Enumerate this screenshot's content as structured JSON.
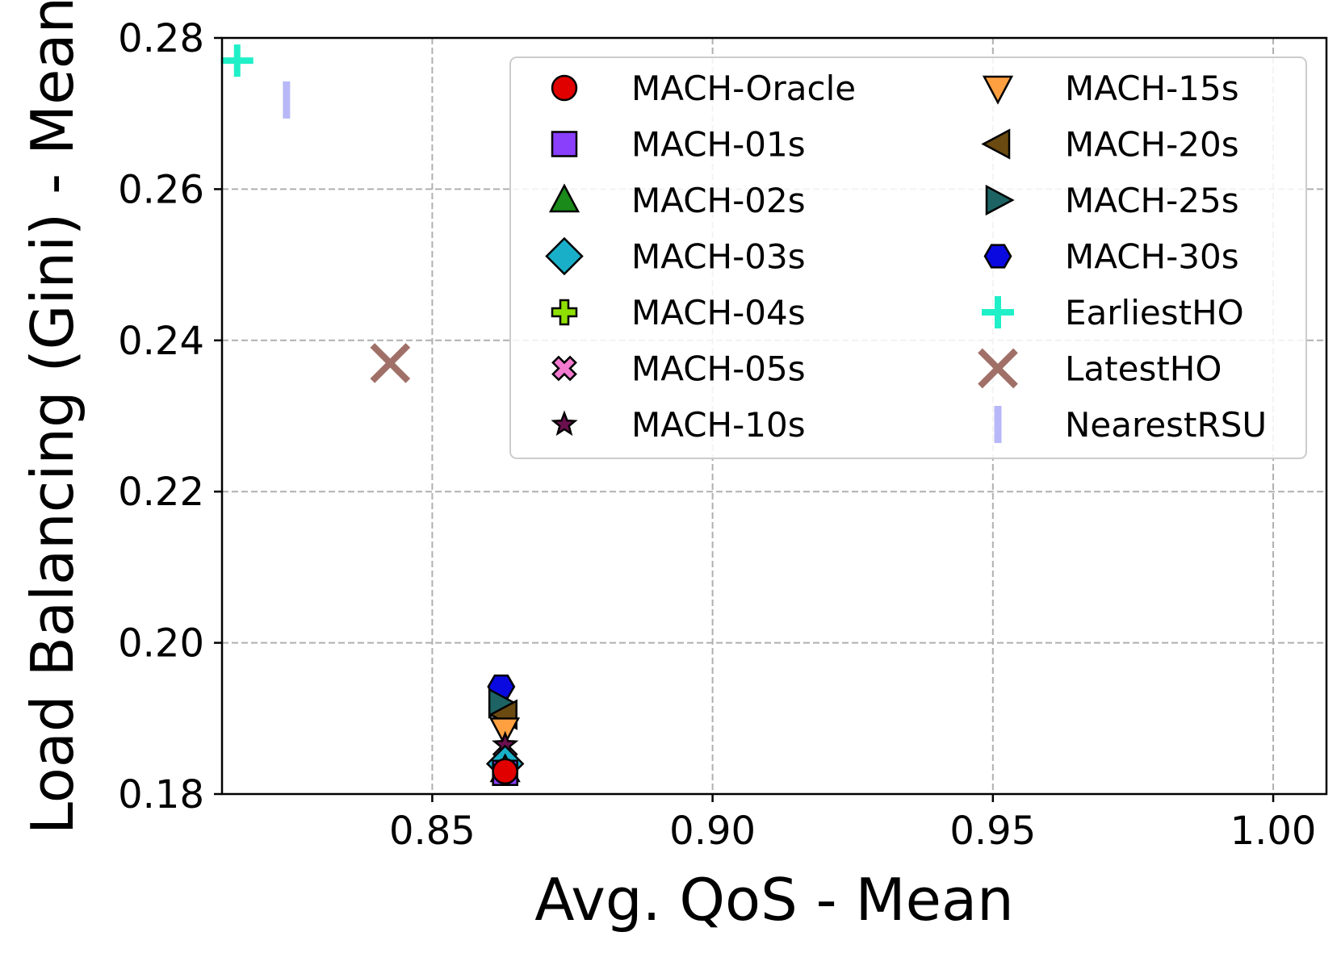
{
  "chart_data": {
    "type": "scatter",
    "title": "",
    "xlabel": "Avg. QoS - Mean",
    "ylabel": "Load Balancing (Gini) - Mean",
    "xlim": [
      0.8125,
      1.0095
    ],
    "ylim": [
      0.18,
      0.28
    ],
    "xticks": [
      0.85,
      0.9,
      0.95,
      1.0
    ],
    "xtick_labels": [
      "0.85",
      "0.90",
      "0.95",
      "1.00"
    ],
    "yticks": [
      0.18,
      0.2,
      0.22,
      0.24,
      0.26,
      0.28
    ],
    "ytick_labels": [
      "0.18",
      "0.20",
      "0.22",
      "0.24",
      "0.26",
      "0.28"
    ],
    "grid": true,
    "legend_position": "top-right",
    "series": [
      {
        "name": "MACH-Oracle",
        "marker": "circle",
        "color": "#e00000",
        "x": 0.863,
        "y": 0.183
      },
      {
        "name": "MACH-01s",
        "marker": "square",
        "color": "#8a3ffc",
        "x": 0.863,
        "y": 0.1828
      },
      {
        "name": "MACH-02s",
        "marker": "triangle-up",
        "color": "#1a8a1a",
        "x": 0.863,
        "y": 0.1832
      },
      {
        "name": "MACH-03s",
        "marker": "diamond",
        "color": "#1aafc8",
        "x": 0.863,
        "y": 0.184
      },
      {
        "name": "MACH-04s",
        "marker": "plus-filled",
        "color": "#8fe000",
        "x": 0.863,
        "y": 0.1835
      },
      {
        "name": "MACH-05s",
        "marker": "x-filled",
        "color": "#f47ad0",
        "x": 0.863,
        "y": 0.1845
      },
      {
        "name": "MACH-10s",
        "marker": "star",
        "color": "#6b0f4f",
        "x": 0.863,
        "y": 0.1865
      },
      {
        "name": "MACH-15s",
        "marker": "triangle-down",
        "color": "#ffa040",
        "x": 0.8629,
        "y": 0.1885
      },
      {
        "name": "MACH-20s",
        "marker": "triangle-left",
        "color": "#6b4a12",
        "x": 0.863,
        "y": 0.1905
      },
      {
        "name": "MACH-25s",
        "marker": "triangle-right",
        "color": "#1d6363",
        "x": 0.8622,
        "y": 0.192
      },
      {
        "name": "MACH-30s",
        "marker": "hexagon",
        "color": "#0a0ae0",
        "x": 0.8623,
        "y": 0.1942
      },
      {
        "name": "EarliestHO",
        "marker": "plus",
        "color": "#20f0c8",
        "x": 0.8152,
        "y": 0.277
      },
      {
        "name": "LatestHO",
        "marker": "x",
        "color": "#a07068",
        "x": 0.8425,
        "y": 0.237
      },
      {
        "name": "NearestRSU",
        "marker": "vline",
        "color": "#b8b8f8",
        "x": 0.824,
        "y": 0.2718
      }
    ]
  }
}
